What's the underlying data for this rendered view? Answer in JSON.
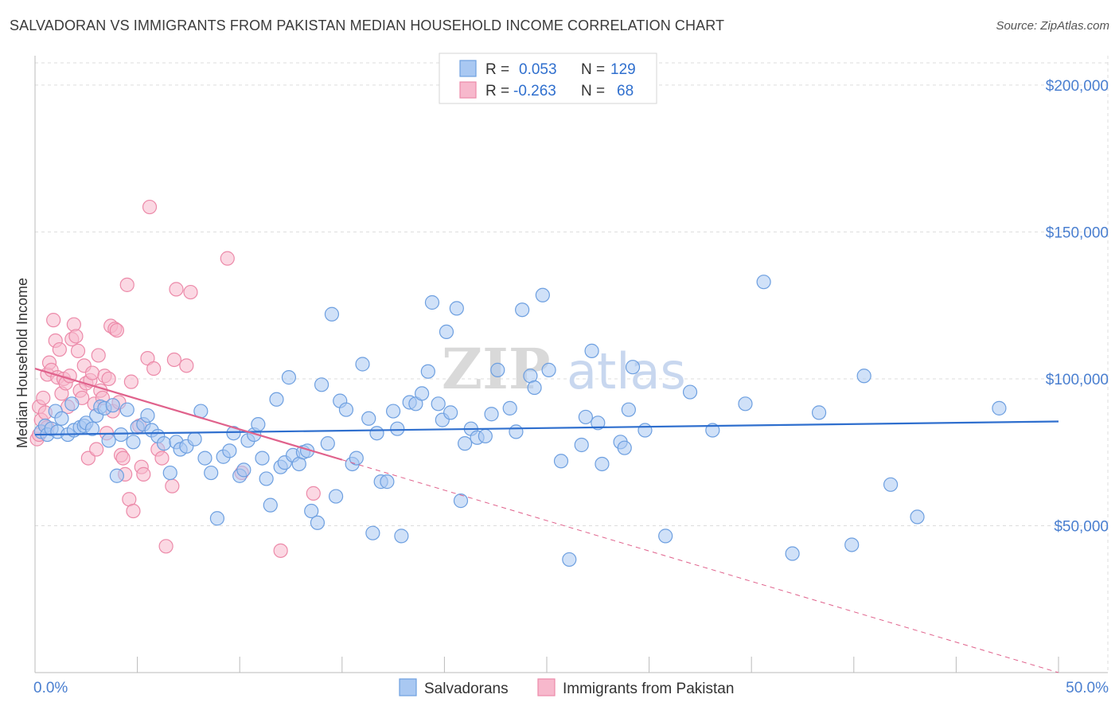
{
  "title": "SALVADORAN VS IMMIGRANTS FROM PAKISTAN MEDIAN HOUSEHOLD INCOME CORRELATION CHART",
  "source": "Source: ZipAtlas.com",
  "watermark": {
    "zip": "ZIP",
    "atlas": "atlas"
  },
  "colors": {
    "blue_fill": "#a9c8f2",
    "blue_stroke": "#6d9fe0",
    "blue_line": "#2f6fce",
    "pink_fill": "#f7b8cc",
    "pink_stroke": "#ec8aa9",
    "pink_line": "#e0628c",
    "grid": "#dddddd",
    "axis_label": "#4a7fd0"
  },
  "legend": {
    "rows": [
      {
        "r_label": "R =",
        "r_value": "0.053",
        "n_label": "N =",
        "n_value": "129"
      },
      {
        "r_label": "R =",
        "r_value": "-0.263",
        "n_label": "N =",
        "n_value": "68"
      }
    ]
  },
  "chart_data": {
    "type": "scatter",
    "title": "SALVADORAN VS IMMIGRANTS FROM PAKISTAN MEDIAN HOUSEHOLD INCOME CORRELATION CHART",
    "xlabel": "",
    "ylabel": "Median Household Income",
    "xlim": [
      0,
      50
    ],
    "ylim": [
      0,
      210000
    ],
    "x_tick_labels": [
      {
        "value": 0,
        "label": "0.0%"
      },
      {
        "value": 50,
        "label": "50.0%"
      }
    ],
    "y_tick_labels": [
      {
        "value": 50000,
        "label": "$50,000"
      },
      {
        "value": 100000,
        "label": "$100,000"
      },
      {
        "value": 150000,
        "label": "$150,000"
      },
      {
        "value": 200000,
        "label": "$200,000"
      }
    ],
    "grid": true,
    "legend_position": "bottom",
    "series": [
      {
        "name": "Salvadorans",
        "color": "#6d9fe0",
        "trend": {
          "x0": 0,
          "y0": 81000,
          "x1": 50,
          "y1": 85500,
          "solid_to": 50
        },
        "points": [
          [
            0.3,
            82000
          ],
          [
            0.5,
            84000
          ],
          [
            0.6,
            81000
          ],
          [
            0.8,
            83000
          ],
          [
            1.0,
            89000
          ],
          [
            1.1,
            82000
          ],
          [
            1.3,
            86500
          ],
          [
            1.6,
            81000
          ],
          [
            1.8,
            91500
          ],
          [
            1.9,
            82500
          ],
          [
            2.2,
            83500
          ],
          [
            2.4,
            84000
          ],
          [
            2.5,
            85000
          ],
          [
            2.8,
            83000
          ],
          [
            3.0,
            87500
          ],
          [
            3.2,
            90500
          ],
          [
            3.4,
            90000
          ],
          [
            3.6,
            79000
          ],
          [
            3.8,
            91000
          ],
          [
            4.0,
            67000
          ],
          [
            4.2,
            81000
          ],
          [
            4.5,
            89500
          ],
          [
            4.8,
            78500
          ],
          [
            5.0,
            83500
          ],
          [
            5.3,
            84500
          ],
          [
            5.5,
            87500
          ],
          [
            5.7,
            82500
          ],
          [
            6.0,
            80500
          ],
          [
            6.3,
            78000
          ],
          [
            6.6,
            68000
          ],
          [
            6.9,
            78500
          ],
          [
            7.1,
            76000
          ],
          [
            7.4,
            77000
          ],
          [
            7.8,
            79500
          ],
          [
            8.1,
            89000
          ],
          [
            8.3,
            73000
          ],
          [
            8.6,
            68000
          ],
          [
            8.9,
            52500
          ],
          [
            9.2,
            73500
          ],
          [
            9.5,
            75500
          ],
          [
            9.7,
            81500
          ],
          [
            10.0,
            67000
          ],
          [
            10.2,
            69000
          ],
          [
            10.4,
            79000
          ],
          [
            10.7,
            81000
          ],
          [
            10.9,
            84500
          ],
          [
            11.1,
            73000
          ],
          [
            11.3,
            66000
          ],
          [
            11.5,
            57000
          ],
          [
            11.8,
            93000
          ],
          [
            12.0,
            70000
          ],
          [
            12.2,
            71500
          ],
          [
            12.4,
            100500
          ],
          [
            12.6,
            74000
          ],
          [
            12.9,
            71000
          ],
          [
            13.1,
            75000
          ],
          [
            13.3,
            75500
          ],
          [
            13.5,
            55000
          ],
          [
            13.8,
            51000
          ],
          [
            14.0,
            98000
          ],
          [
            14.3,
            78000
          ],
          [
            14.5,
            122000
          ],
          [
            14.7,
            60000
          ],
          [
            14.9,
            92500
          ],
          [
            15.2,
            89500
          ],
          [
            15.5,
            71000
          ],
          [
            15.7,
            73000
          ],
          [
            16.0,
            105000
          ],
          [
            16.3,
            86500
          ],
          [
            16.5,
            47500
          ],
          [
            16.7,
            81500
          ],
          [
            16.9,
            65000
          ],
          [
            17.2,
            65000
          ],
          [
            17.5,
            89000
          ],
          [
            17.7,
            83000
          ],
          [
            17.9,
            46500
          ],
          [
            18.3,
            92000
          ],
          [
            18.6,
            91500
          ],
          [
            18.9,
            95000
          ],
          [
            19.2,
            102500
          ],
          [
            19.4,
            126000
          ],
          [
            19.7,
            91500
          ],
          [
            19.9,
            86000
          ],
          [
            20.1,
            116000
          ],
          [
            20.3,
            88500
          ],
          [
            20.6,
            124000
          ],
          [
            20.8,
            58500
          ],
          [
            21.0,
            78000
          ],
          [
            21.3,
            83000
          ],
          [
            21.6,
            80000
          ],
          [
            22.0,
            80500
          ],
          [
            22.3,
            88000
          ],
          [
            22.6,
            103000
          ],
          [
            23.2,
            90000
          ],
          [
            23.5,
            82000
          ],
          [
            23.8,
            123500
          ],
          [
            24.2,
            101000
          ],
          [
            24.4,
            97000
          ],
          [
            24.8,
            128500
          ],
          [
            25.1,
            103000
          ],
          [
            25.7,
            72000
          ],
          [
            26.1,
            38500
          ],
          [
            26.7,
            77500
          ],
          [
            26.9,
            87000
          ],
          [
            27.2,
            109500
          ],
          [
            27.5,
            85000
          ],
          [
            27.7,
            71000
          ],
          [
            28.6,
            78500
          ],
          [
            28.8,
            76500
          ],
          [
            29.0,
            89500
          ],
          [
            29.2,
            104000
          ],
          [
            29.8,
            82500
          ],
          [
            30.8,
            46500
          ],
          [
            32.0,
            95500
          ],
          [
            33.1,
            82500
          ],
          [
            34.7,
            91500
          ],
          [
            35.6,
            133000
          ],
          [
            37.0,
            40500
          ],
          [
            38.3,
            88500
          ],
          [
            39.9,
            43500
          ],
          [
            40.5,
            101000
          ],
          [
            41.8,
            64000
          ],
          [
            43.1,
            53000
          ],
          [
            47.1,
            90000
          ]
        ]
      },
      {
        "name": "Immigrants from Pakistan",
        "color": "#ec8aa9",
        "trend": {
          "x0": 0,
          "y0": 103500,
          "x1": 50,
          "y1": 0,
          "solid_to": 15
        },
        "points": [
          [
            0.1,
            79500
          ],
          [
            0.2,
            90500
          ],
          [
            0.3,
            86000
          ],
          [
            0.4,
            93500
          ],
          [
            0.5,
            88500
          ],
          [
            0.6,
            101500
          ],
          [
            0.7,
            105500
          ],
          [
            0.8,
            103000
          ],
          [
            0.9,
            120000
          ],
          [
            1.0,
            113000
          ],
          [
            1.1,
            100500
          ],
          [
            1.2,
            110000
          ],
          [
            1.3,
            95000
          ],
          [
            1.4,
            100000
          ],
          [
            1.5,
            98500
          ],
          [
            1.7,
            101000
          ],
          [
            1.8,
            113500
          ],
          [
            1.9,
            118500
          ],
          [
            2.0,
            114500
          ],
          [
            2.1,
            109500
          ],
          [
            2.2,
            96000
          ],
          [
            2.3,
            93500
          ],
          [
            2.4,
            104500
          ],
          [
            2.5,
            98500
          ],
          [
            2.6,
            73000
          ],
          [
            2.7,
            99500
          ],
          [
            2.8,
            102000
          ],
          [
            2.9,
            91500
          ],
          [
            3.0,
            76000
          ],
          [
            3.1,
            108000
          ],
          [
            3.2,
            96000
          ],
          [
            3.3,
            93500
          ],
          [
            3.4,
            101000
          ],
          [
            3.6,
            100000
          ],
          [
            3.7,
            118000
          ],
          [
            3.8,
            89000
          ],
          [
            3.9,
            117000
          ],
          [
            4.0,
            116500
          ],
          [
            4.1,
            92000
          ],
          [
            4.2,
            74000
          ],
          [
            4.3,
            73000
          ],
          [
            4.4,
            67500
          ],
          [
            4.5,
            132000
          ],
          [
            4.6,
            59000
          ],
          [
            4.7,
            99000
          ],
          [
            4.8,
            55000
          ],
          [
            5.1,
            84000
          ],
          [
            5.2,
            70000
          ],
          [
            5.3,
            67500
          ],
          [
            5.5,
            107000
          ],
          [
            5.6,
            158500
          ],
          [
            5.8,
            103500
          ],
          [
            6.0,
            76000
          ],
          [
            6.2,
            73000
          ],
          [
            6.4,
            43000
          ],
          [
            6.7,
            63500
          ],
          [
            6.8,
            106500
          ],
          [
            6.9,
            130500
          ],
          [
            7.4,
            104500
          ],
          [
            7.6,
            129500
          ],
          [
            9.4,
            141000
          ],
          [
            10.1,
            68000
          ],
          [
            12.0,
            41500
          ],
          [
            13.6,
            61000
          ],
          [
            0.2,
            81000
          ],
          [
            0.6,
            83500
          ],
          [
            1.6,
            90500
          ],
          [
            3.5,
            81500
          ]
        ]
      }
    ]
  }
}
